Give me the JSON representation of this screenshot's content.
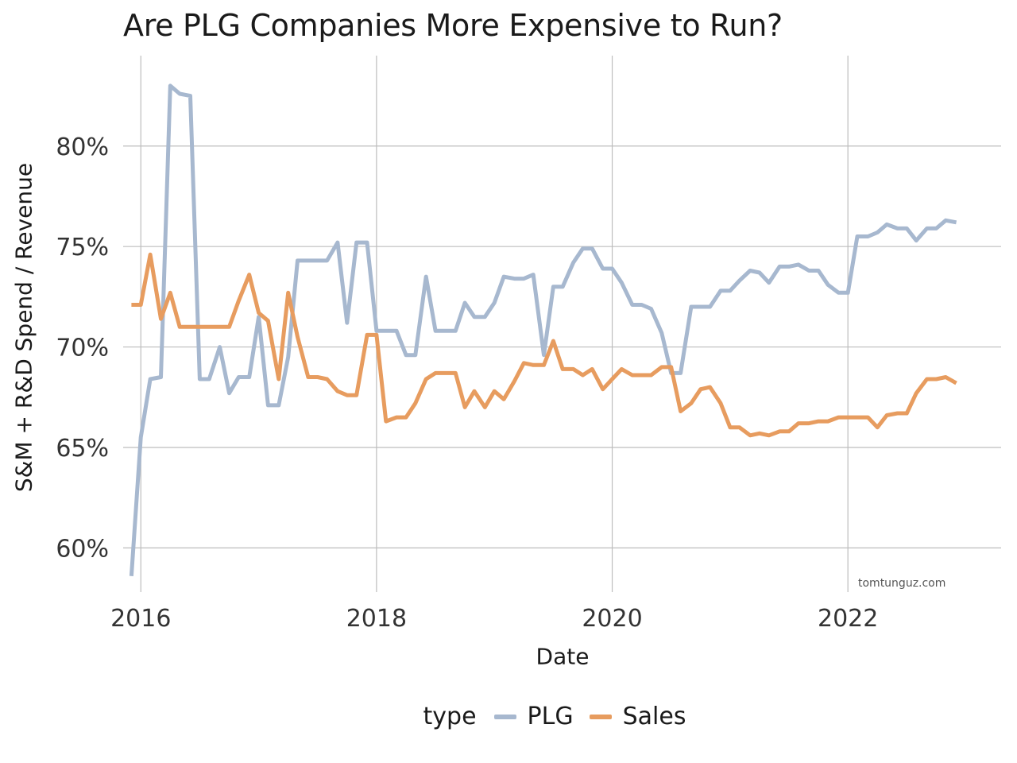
{
  "chart_data": {
    "type": "line",
    "title": "Are PLG Companies More Expensive to Run?",
    "xlabel": "Date",
    "ylabel": "S&M + R&D Spend / Revenue",
    "xlim": [
      2015.85,
      2023.3
    ],
    "ylim": [
      57.8,
      84.5
    ],
    "x_ticks": [
      2016,
      2018,
      2020,
      2022
    ],
    "y_ticks": [
      60,
      65,
      70,
      75,
      80
    ],
    "y_tick_labels": [
      "60%",
      "65%",
      "70%",
      "75%",
      "80%"
    ],
    "legend_title": "type",
    "legend_position": "bottom",
    "watermark": "tomtunguz.com",
    "series": [
      {
        "name": "PLG",
        "color": "#a7b8cf",
        "x": [
          2015.92,
          2016.0,
          2016.08,
          2016.17,
          2016.25,
          2016.33,
          2016.42,
          2016.5,
          2016.58,
          2016.67,
          2016.75,
          2016.83,
          2016.92,
          2017.0,
          2017.08,
          2017.17,
          2017.25,
          2017.33,
          2017.42,
          2017.5,
          2017.58,
          2017.67,
          2017.75,
          2017.83,
          2017.92,
          2018.0,
          2018.08,
          2018.17,
          2018.25,
          2018.33,
          2018.42,
          2018.5,
          2018.58,
          2018.67,
          2018.75,
          2018.83,
          2018.92,
          2019.0,
          2019.08,
          2019.17,
          2019.25,
          2019.33,
          2019.42,
          2019.5,
          2019.58,
          2019.67,
          2019.75,
          2019.83,
          2019.92,
          2020.0,
          2020.08,
          2020.17,
          2020.25,
          2020.33,
          2020.42,
          2020.5,
          2020.58,
          2020.67,
          2020.75,
          2020.83,
          2020.92,
          2021.0,
          2021.08,
          2021.17,
          2021.25,
          2021.33,
          2021.42,
          2021.5,
          2021.58,
          2021.67,
          2021.75,
          2021.83,
          2021.92,
          2022.0,
          2022.08,
          2022.17,
          2022.25,
          2022.33,
          2022.42,
          2022.5,
          2022.58,
          2022.67,
          2022.75,
          2022.83,
          2022.92
        ],
        "values": [
          58.6,
          65.5,
          68.4,
          68.5,
          83.0,
          82.6,
          82.5,
          68.4,
          68.4,
          70.0,
          67.7,
          68.5,
          68.5,
          71.5,
          67.1,
          67.1,
          69.5,
          74.3,
          74.3,
          74.3,
          74.3,
          75.2,
          71.2,
          75.2,
          75.2,
          70.8,
          70.8,
          70.8,
          69.6,
          69.6,
          73.5,
          70.8,
          70.8,
          70.8,
          72.2,
          71.5,
          71.5,
          72.2,
          73.5,
          73.4,
          73.4,
          73.6,
          69.6,
          73.0,
          73.0,
          74.2,
          74.9,
          74.9,
          73.9,
          73.9,
          73.2,
          72.1,
          72.1,
          71.9,
          70.7,
          68.7,
          68.7,
          72.0,
          72.0,
          72.0,
          72.8,
          72.8,
          73.3,
          73.8,
          73.7,
          73.2,
          74.0,
          74.0,
          74.1,
          73.8,
          73.8,
          73.1,
          72.7,
          72.7,
          75.5,
          75.5,
          75.7,
          76.1,
          75.9,
          75.9,
          75.3,
          75.9,
          75.9,
          76.3,
          76.2
        ]
      },
      {
        "name": "Sales",
        "color": "#e79c5f",
        "x": [
          2015.92,
          2016.0,
          2016.08,
          2016.17,
          2016.25,
          2016.33,
          2016.42,
          2016.5,
          2016.58,
          2016.67,
          2016.75,
          2016.83,
          2016.92,
          2017.0,
          2017.08,
          2017.17,
          2017.25,
          2017.33,
          2017.42,
          2017.5,
          2017.58,
          2017.67,
          2017.75,
          2017.83,
          2017.92,
          2018.0,
          2018.08,
          2018.17,
          2018.25,
          2018.33,
          2018.42,
          2018.5,
          2018.58,
          2018.67,
          2018.75,
          2018.83,
          2018.92,
          2019.0,
          2019.08,
          2019.17,
          2019.25,
          2019.33,
          2019.42,
          2019.5,
          2019.58,
          2019.67,
          2019.75,
          2019.83,
          2019.92,
          2020.0,
          2020.08,
          2020.17,
          2020.25,
          2020.33,
          2020.42,
          2020.5,
          2020.58,
          2020.67,
          2020.75,
          2020.83,
          2020.92,
          2021.0,
          2021.08,
          2021.17,
          2021.25,
          2021.33,
          2021.42,
          2021.5,
          2021.58,
          2021.67,
          2021.75,
          2021.83,
          2021.92,
          2022.0,
          2022.08,
          2022.17,
          2022.25,
          2022.33,
          2022.42,
          2022.5,
          2022.58,
          2022.67,
          2022.75,
          2022.83,
          2022.92
        ],
        "values": [
          72.1,
          72.1,
          74.6,
          71.4,
          72.7,
          71.0,
          71.0,
          71.0,
          71.0,
          71.0,
          71.0,
          72.3,
          73.6,
          71.7,
          71.3,
          68.4,
          72.7,
          70.5,
          68.5,
          68.5,
          68.4,
          67.8,
          67.6,
          67.6,
          70.6,
          70.6,
          66.3,
          66.5,
          66.5,
          67.2,
          68.4,
          68.7,
          68.7,
          68.7,
          67.0,
          67.8,
          67.0,
          67.8,
          67.4,
          68.3,
          69.2,
          69.1,
          69.1,
          70.3,
          68.9,
          68.9,
          68.6,
          68.9,
          67.9,
          68.4,
          68.9,
          68.6,
          68.6,
          68.6,
          69.0,
          69.0,
          66.8,
          67.2,
          67.9,
          68.0,
          67.2,
          66.0,
          66.0,
          65.6,
          65.7,
          65.6,
          65.8,
          65.8,
          66.2,
          66.2,
          66.3,
          66.3,
          66.5,
          66.5,
          66.5,
          66.5,
          66.0,
          66.6,
          66.7,
          66.7,
          67.7,
          68.4,
          68.4,
          68.5,
          68.2
        ]
      }
    ]
  }
}
